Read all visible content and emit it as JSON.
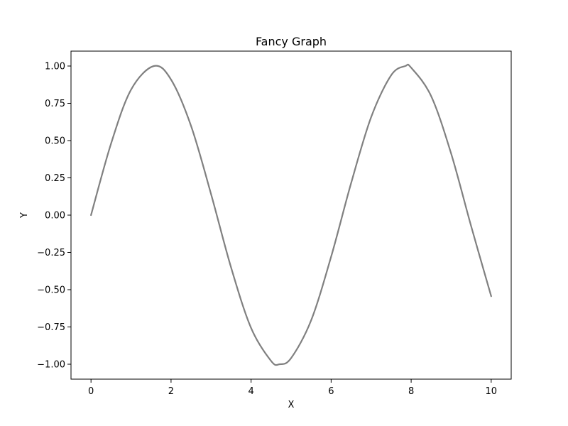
{
  "chart_data": {
    "type": "line",
    "title": "Fancy Graph",
    "xlabel": "X",
    "ylabel": "Y",
    "xlim": [
      -0.5,
      10.5
    ],
    "ylim": [
      -1.1,
      1.1
    ],
    "x_ticks": [
      0,
      2,
      4,
      6,
      8,
      10
    ],
    "x_tick_labels": [
      "0",
      "2",
      "4",
      "6",
      "8",
      "10"
    ],
    "y_ticks": [
      -1.0,
      -0.75,
      -0.5,
      -0.25,
      0.0,
      0.25,
      0.5,
      0.75,
      1.0
    ],
    "y_tick_labels": [
      "−1.00",
      "−0.75",
      "−0.50",
      "−0.25",
      "0.00",
      "0.25",
      "0.50",
      "0.75",
      "1.00"
    ],
    "grid": false,
    "series": [
      {
        "color": "#808080",
        "x": [
          0,
          0.5,
          1,
          1.5708,
          2,
          2.5,
          3,
          3.5,
          4,
          4.5,
          4.7124,
          5,
          5.5,
          6,
          6.5,
          7,
          7.5,
          7.854,
          8,
          8.5,
          9,
          9.5,
          10
        ],
        "y": [
          0,
          0.479,
          0.841,
          1.0,
          0.909,
          0.598,
          0.141,
          -0.351,
          -0.757,
          -0.978,
          -1.0,
          -0.959,
          -0.706,
          -0.279,
          0.215,
          0.657,
          0.938,
          1.0,
          0.989,
          0.798,
          0.412,
          -0.075,
          -0.544
        ]
      }
    ]
  }
}
